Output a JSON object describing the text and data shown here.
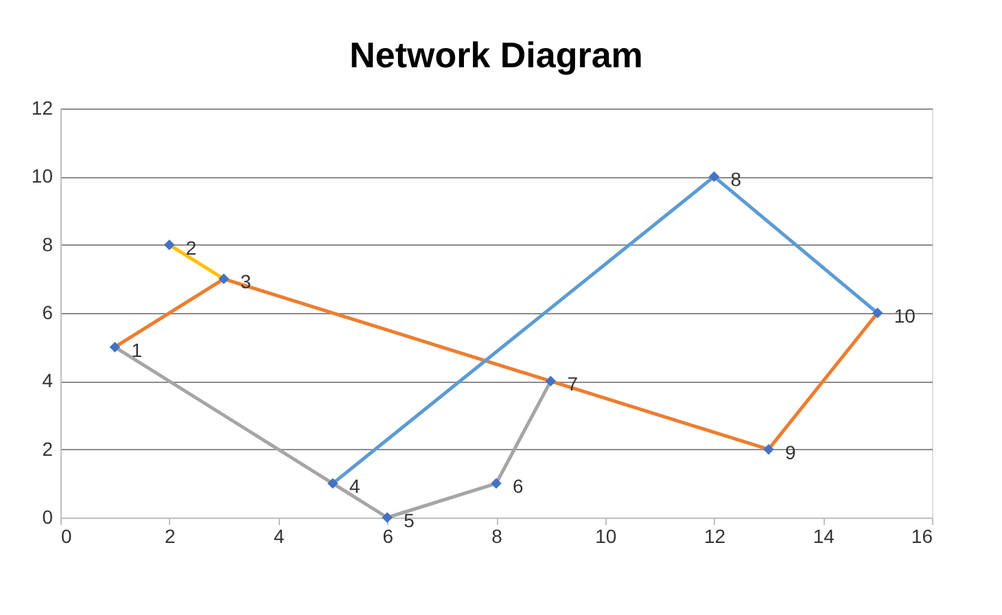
{
  "chart_data": {
    "type": "line",
    "title": "Network Diagram",
    "xlim": [
      0,
      16
    ],
    "xticks": [
      0,
      2,
      4,
      6,
      8,
      10,
      12,
      14,
      16
    ],
    "ylim": [
      0,
      12
    ],
    "yticks": [
      0,
      2,
      4,
      6,
      8,
      10,
      12
    ],
    "grid": "y",
    "series": [
      {
        "color": "#ed7d31",
        "x": [
          1,
          3,
          13,
          15
        ],
        "values": [
          5,
          7,
          2,
          6
        ],
        "marker": "none",
        "line_style": "solid"
      },
      {
        "color": "#ffc000",
        "x": [
          2,
          3
        ],
        "values": [
          8,
          7
        ],
        "marker": "none",
        "line_style": "solid"
      },
      {
        "color": "#a5a5a5",
        "x": [
          1,
          5,
          6,
          8,
          9
        ],
        "values": [
          5,
          1,
          0,
          1,
          4
        ],
        "marker": "none",
        "line_style": "solid"
      },
      {
        "color": "#5b9bd5",
        "x": [
          5,
          12,
          15
        ],
        "values": [
          1,
          10,
          6
        ],
        "marker": "none",
        "line_style": "solid"
      },
      {
        "type": "scatter",
        "color": "#4472c4",
        "x": [
          1,
          2,
          3,
          5,
          6,
          8,
          9,
          12,
          13,
          15
        ],
        "values": [
          5,
          8,
          7,
          1,
          0,
          1,
          4,
          10,
          2,
          6
        ],
        "marker": "diamond"
      }
    ],
    "annotations": [
      {
        "text": "1",
        "x": 1,
        "y": 5
      },
      {
        "text": "2",
        "x": 2,
        "y": 8
      },
      {
        "text": "3",
        "x": 3,
        "y": 7
      },
      {
        "text": "4",
        "x": 5,
        "y": 1
      },
      {
        "text": "5",
        "x": 6,
        "y": 0
      },
      {
        "text": "6",
        "x": 8,
        "y": 1
      },
      {
        "text": "7",
        "x": 9,
        "y": 4
      },
      {
        "text": "8",
        "x": 12,
        "y": 10
      },
      {
        "text": "9",
        "x": 13,
        "y": 2
      },
      {
        "text": "10",
        "x": 15,
        "y": 6
      }
    ]
  }
}
